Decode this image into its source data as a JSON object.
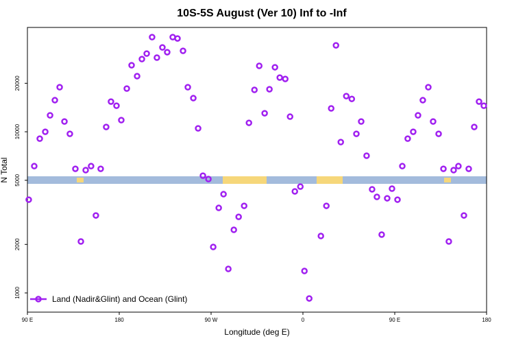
{
  "chart_data": {
    "type": "scatter",
    "title": "10S-5S August (Ver 10)   Inf to -Inf",
    "x_label": "Longitude (deg E)",
    "y_label": "N Total",
    "log_y": true,
    "xlim": [
      90,
      540
    ],
    "ylim": [
      760,
      44400
    ],
    "xticks": [
      {
        "value": 90,
        "label": "90 E"
      },
      {
        "value": 180,
        "label": "180"
      },
      {
        "value": 270,
        "label": "90 W"
      },
      {
        "value": 360,
        "label": "0"
      },
      {
        "value": 450,
        "label": "90 E"
      },
      {
        "value": 540,
        "label": "180"
      }
    ],
    "yticks": [
      1000,
      2000,
      5000,
      10000,
      20000
    ],
    "legend_position": "bottom-left",
    "series": [
      {
        "name": "Land (Nadir&Glint) and Ocean (Glint)",
        "color": "#a020f0",
        "x": [
          91.3,
          96.7,
          102.1,
          107.5,
          112.2,
          116.9,
          121.6,
          126.3,
          131.6,
          137.0,
          142.4,
          147.1,
          152.4,
          157.1,
          161.8,
          167.2,
          171.9,
          177.3,
          182.0,
          187.4,
          192.1,
          197.5,
          202.2,
          206.9,
          212.2,
          216.9,
          222.3,
          227.0,
          232.4,
          237.1,
          242.5,
          247.2,
          252.6,
          257.3,
          262.0,
          267.4,
          272.1,
          277.5,
          282.2,
          286.9,
          292.3,
          297.0,
          302.4,
          307.1,
          312.5,
          317.2,
          322.5,
          327.2,
          332.6,
          337.3,
          342.7,
          347.4,
          352.1,
          357.5,
          361.5,
          366.2,
          377.6,
          383.0,
          387.7,
          392.4,
          397.1,
          402.5,
          407.9,
          412.4,
          417.1,
          422.4,
          427.8,
          432.5,
          437.2,
          442.6,
          447.3,
          452.7,
          457.4,
          462.7,
          468.1,
          472.8,
          477.5,
          482.9,
          487.6,
          493.0,
          497.7,
          503.0,
          507.7,
          512.4,
          517.8,
          522.5,
          527.9,
          532.6,
          537.3
        ],
        "values": [
          3790,
          6120,
          9060,
          10000,
          12650,
          15700,
          18900,
          11580,
          9710,
          5890,
          2085,
          5780,
          6120,
          3025,
          5890,
          10710,
          15390,
          14510,
          11810,
          18530,
          25870,
          22130,
          28250,
          30550,
          38650,
          28840,
          33360,
          31170,
          38650,
          37920,
          31780,
          18900,
          16170,
          10500,
          5340,
          5090,
          1928,
          3370,
          4100,
          1409,
          2463,
          2966,
          3470,
          11360,
          18190,
          25640,
          13030,
          18360,
          25130,
          21690,
          21270,
          12410,
          4265,
          4570,
          1368,
          924,
          2255,
          3470,
          13960,
          34360,
          8630,
          16640,
          15990,
          9710,
          11580,
          7100,
          4395,
          3943,
          2300,
          3865,
          4436,
          3790,
          6120,
          9060,
          10000,
          12650,
          15700,
          18900,
          11580,
          9710,
          5890,
          2085,
          5780,
          6120,
          3025,
          5890,
          10710,
          15390,
          14510
        ]
      }
    ]
  }
}
